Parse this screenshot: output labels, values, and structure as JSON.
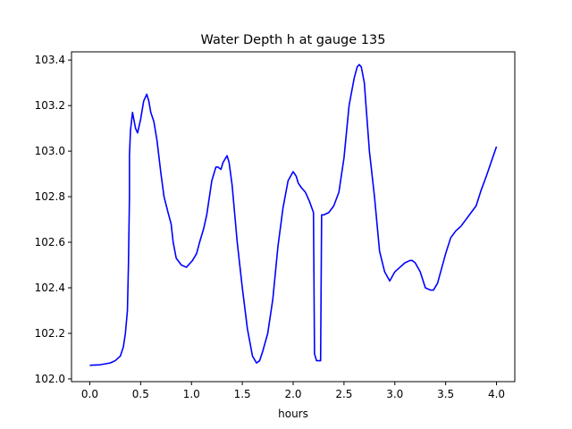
{
  "chart_data": {
    "type": "line",
    "title": "Water Depth h at gauge 135",
    "xlabel": "hours",
    "ylabel": "",
    "xlim": [
      -0.18,
      4.18
    ],
    "ylim": [
      101.988,
      103.436
    ],
    "xticks": [
      0.0,
      0.5,
      1.0,
      1.5,
      2.0,
      2.5,
      3.0,
      3.5,
      4.0
    ],
    "xtick_labels": [
      "0.0",
      "0.5",
      "1.0",
      "1.5",
      "2.0",
      "2.5",
      "3.0",
      "3.5",
      "4.0"
    ],
    "yticks": [
      102.0,
      102.2,
      102.4,
      102.6,
      102.8,
      103.0,
      103.2,
      103.4
    ],
    "ytick_labels": [
      "102.0",
      "102.2",
      "102.4",
      "102.6",
      "102.8",
      "103.0",
      "103.2",
      "103.4"
    ],
    "grid": false,
    "legend": "none",
    "series": [
      {
        "color": "#0000ff",
        "x": [
          0.0,
          0.1,
          0.2,
          0.25,
          0.3,
          0.33,
          0.35,
          0.37,
          0.38,
          0.39,
          0.39,
          0.4,
          0.42,
          0.45,
          0.47,
          0.5,
          0.53,
          0.56,
          0.58,
          0.6,
          0.63,
          0.66,
          0.7,
          0.73,
          0.77,
          0.8,
          0.82,
          0.85,
          0.9,
          0.95,
          0.99,
          1.01,
          1.05,
          1.08,
          1.12,
          1.15,
          1.2,
          1.24,
          1.26,
          1.29,
          1.31,
          1.35,
          1.37,
          1.4,
          1.45,
          1.5,
          1.55,
          1.6,
          1.64,
          1.67,
          1.7,
          1.75,
          1.8,
          1.85,
          1.9,
          1.95,
          2.0,
          2.03,
          2.05,
          2.08,
          2.12,
          2.16,
          2.2,
          2.21,
          2.23,
          2.27,
          2.28,
          2.3,
          2.35,
          2.4,
          2.45,
          2.5,
          2.55,
          2.6,
          2.63,
          2.65,
          2.67,
          2.7,
          2.75,
          2.8,
          2.85,
          2.9,
          2.95,
          3.0,
          3.05,
          3.1,
          3.15,
          3.17,
          3.2,
          3.25,
          3.3,
          3.35,
          3.38,
          3.42,
          3.5,
          3.55,
          3.6,
          3.65,
          3.7,
          3.75,
          3.8,
          3.85,
          3.9,
          4.0
        ],
        "y": [
          102.06,
          102.062,
          102.07,
          102.08,
          102.1,
          102.14,
          102.2,
          102.3,
          102.5,
          102.8,
          102.98,
          103.09,
          103.17,
          103.1,
          103.08,
          103.14,
          103.22,
          103.25,
          103.22,
          103.17,
          103.13,
          103.05,
          102.9,
          102.8,
          102.73,
          102.68,
          102.6,
          102.53,
          102.5,
          102.49,
          102.51,
          102.52,
          102.55,
          102.6,
          102.66,
          102.72,
          102.87,
          102.93,
          102.93,
          102.92,
          102.95,
          102.98,
          102.95,
          102.85,
          102.6,
          102.4,
          102.22,
          102.1,
          102.07,
          102.08,
          102.12,
          102.2,
          102.35,
          102.58,
          102.75,
          102.87,
          102.91,
          102.89,
          102.86,
          102.84,
          102.82,
          102.78,
          102.73,
          102.11,
          102.08,
          102.08,
          102.72,
          102.72,
          102.73,
          102.76,
          102.82,
          102.97,
          103.2,
          103.32,
          103.37,
          103.38,
          103.37,
          103.3,
          103.0,
          102.8,
          102.56,
          102.47,
          102.43,
          102.47,
          102.49,
          102.51,
          102.52,
          102.52,
          102.51,
          102.47,
          102.4,
          102.39,
          102.39,
          102.42,
          102.55,
          102.62,
          102.65,
          102.67,
          102.7,
          102.73,
          102.76,
          102.83,
          102.89,
          103.02
        ]
      }
    ]
  }
}
